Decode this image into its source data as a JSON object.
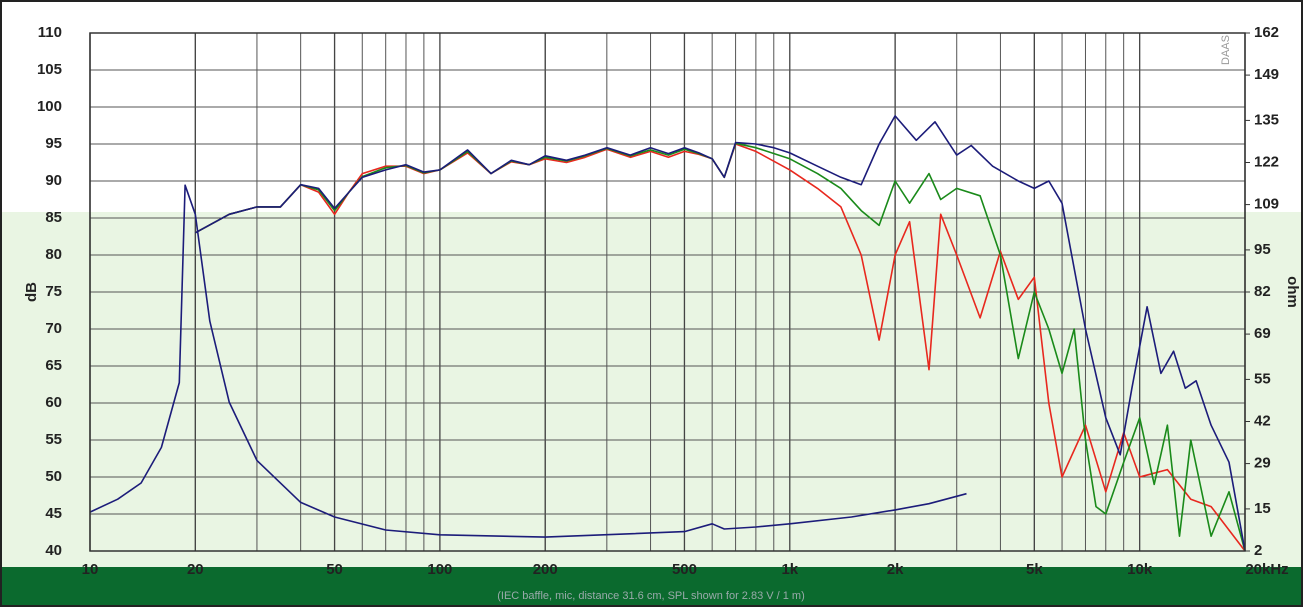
{
  "chart_data": {
    "type": "line",
    "y_label": "dB",
    "y2_label": "ohm",
    "watermark": "DAAS",
    "caption": "(IEC baffle, mic, distance 31.6 cm, SPL shown for 2.83 V / 1 m)",
    "log_x": true,
    "grid": true,
    "xlim": [
      10,
      20000
    ],
    "xticks": [
      10,
      20,
      50,
      100,
      200,
      500,
      {
        "value": 1000,
        "label": "1k"
      },
      {
        "value": 2000,
        "label": "2k"
      },
      {
        "value": 5000,
        "label": "5k"
      },
      {
        "value": 10000,
        "label": "10k"
      },
      {
        "value": 20000,
        "label": "20kHz"
      }
    ],
    "ylim": [
      40,
      110
    ],
    "yticks": [
      40,
      45,
      50,
      55,
      60,
      65,
      70,
      75,
      80,
      85,
      90,
      95,
      100,
      105,
      110
    ],
    "y2lim": [
      2,
      162
    ],
    "y2ticks": [
      2,
      15,
      29,
      42,
      55,
      69,
      82,
      95,
      109,
      122,
      135,
      149,
      162
    ],
    "series": [
      {
        "color": "#e8281e",
        "x": [
          20,
          25,
          30,
          35,
          40,
          45,
          50,
          55,
          60,
          70,
          80,
          90,
          100,
          120,
          140,
          160,
          180,
          200,
          230,
          260,
          300,
          350,
          400,
          450,
          500,
          550,
          600,
          650,
          700,
          800,
          1000,
          1200,
          1400,
          1600,
          1800,
          2000,
          2200,
          2500,
          2700,
          3000,
          3500,
          4000,
          4500,
          5000,
          5500,
          6000,
          7000,
          8000,
          9000,
          10000,
          12000,
          14000,
          16000,
          20000
        ],
        "values": [
          83,
          85.5,
          86.5,
          86.5,
          89.5,
          88.5,
          85.5,
          88.5,
          91,
          92,
          92,
          91,
          91.5,
          93.8,
          91,
          92.6,
          92.2,
          93,
          92.5,
          93.2,
          94.3,
          93.2,
          94,
          93.2,
          94,
          93.6,
          93,
          90.5,
          95,
          94,
          91.5,
          89,
          86.5,
          80,
          68.5,
          80,
          84.5,
          64.5,
          85.5,
          80,
          71.5,
          80.5,
          74,
          77,
          60,
          50,
          57,
          48,
          56,
          50,
          51,
          47,
          46,
          40
        ]
      },
      {
        "color": "#1a8a1a",
        "x": [
          20,
          25,
          30,
          35,
          40,
          45,
          50,
          55,
          60,
          70,
          80,
          90,
          100,
          120,
          140,
          160,
          180,
          200,
          230,
          260,
          300,
          350,
          400,
          450,
          500,
          550,
          600,
          650,
          700,
          800,
          1000,
          1200,
          1400,
          1600,
          1800,
          2000,
          2200,
          2500,
          2700,
          3000,
          3500,
          4000,
          4500,
          5000,
          5500,
          6000,
          6500,
          7000,
          7500,
          8000,
          9000,
          10000,
          11000,
          12000,
          13000,
          14000,
          16000,
          18000,
          20000
        ],
        "values": [
          83,
          85.5,
          86.5,
          86.5,
          89.5,
          88.8,
          86,
          88.5,
          90.6,
          91.8,
          92.1,
          91.1,
          91.5,
          94,
          91,
          92.7,
          92.2,
          93.2,
          92.7,
          93.4,
          94.4,
          93.4,
          94.2,
          93.5,
          94.3,
          93.7,
          93,
          90.5,
          95.1,
          94.5,
          93,
          91,
          89,
          86,
          84,
          90,
          87,
          91,
          87.5,
          89,
          88,
          80,
          66,
          75,
          70,
          64,
          70,
          55,
          46,
          45,
          52,
          58,
          49,
          57,
          42,
          55,
          42,
          48,
          40
        ]
      },
      {
        "color": "#1c1c7a",
        "x": [
          20,
          25,
          30,
          35,
          40,
          45,
          50,
          55,
          60,
          70,
          80,
          90,
          100,
          120,
          140,
          160,
          180,
          200,
          230,
          260,
          300,
          350,
          400,
          450,
          500,
          550,
          600,
          650,
          700,
          800,
          900,
          1000,
          1200,
          1400,
          1600,
          1800,
          2000,
          2300,
          2600,
          3000,
          3300,
          3800,
          4500,
          5000,
          5500,
          6000,
          7000,
          8000,
          8800,
          9500,
          10500,
          11500,
          12500,
          13500,
          14500,
          16000,
          18000,
          20000
        ],
        "values": [
          83,
          85.5,
          86.5,
          86.5,
          89.5,
          89,
          86.3,
          88.5,
          90.5,
          91.5,
          92.2,
          91.2,
          91.5,
          94.2,
          91,
          92.8,
          92.2,
          93.4,
          92.8,
          93.5,
          94.5,
          93.5,
          94.5,
          93.7,
          94.5,
          93.8,
          93,
          90.5,
          95.2,
          95,
          94.5,
          93.8,
          92,
          90.5,
          89.5,
          95,
          98.8,
          95.5,
          98,
          93.5,
          94.8,
          92,
          90,
          89,
          90,
          87,
          70,
          58,
          53,
          62,
          73,
          64,
          67,
          62,
          63,
          57,
          52,
          40
        ]
      },
      {
        "color": "#1c1c7a",
        "axis": "y2",
        "x": [
          10,
          12,
          14,
          16,
          18,
          18.7,
          20,
          22,
          25,
          30,
          40,
          50,
          70,
          100,
          200,
          500,
          600,
          650,
          800,
          1000,
          1500,
          2000,
          2500,
          3200
        ],
        "values": [
          14,
          18,
          23,
          34,
          54,
          115,
          106,
          73,
          48,
          30,
          17,
          12.5,
          8.5,
          7,
          6.3,
          8,
          10.4,
          8.8,
          9.4,
          10.4,
          12.5,
          14.7,
          16.6,
          19.7
        ]
      }
    ]
  }
}
